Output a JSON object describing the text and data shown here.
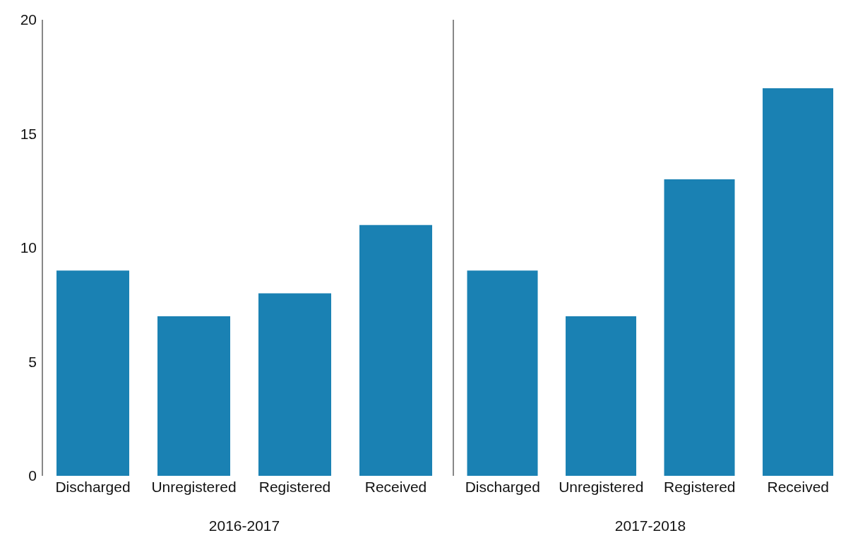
{
  "chart_data": [
    {
      "type": "bar",
      "categories": [
        "Discharged",
        "Unregistered",
        "Registered",
        "Received"
      ],
      "values": [
        9,
        7,
        8,
        11
      ],
      "color": "#1a81b3",
      "xlabel": "2016-2017",
      "ylim": [
        0,
        20
      ],
      "yticks": [
        0,
        5,
        10,
        15,
        20
      ],
      "grid": false,
      "legend": false
    },
    {
      "type": "bar",
      "categories": [
        "Discharged",
        "Unregistered",
        "Registered",
        "Received"
      ],
      "values": [
        9,
        7,
        13,
        17
      ],
      "color": "#1a81b3",
      "xlabel": "2017-2018",
      "ylim": [
        0,
        20
      ],
      "yticks": [
        0,
        5,
        10,
        15,
        20
      ],
      "grid": false,
      "legend": false,
      "tick_labels": "x"
    }
  ]
}
